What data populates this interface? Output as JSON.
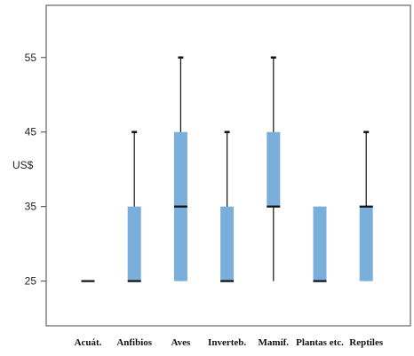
{
  "chart_data": {
    "type": "boxplot",
    "title": "",
    "xlabel": "",
    "ylabel": "US$",
    "ylim": [
      19,
      62
    ],
    "yticks": [
      25,
      35,
      45,
      55
    ],
    "grid": false,
    "categories": [
      "Acuát.",
      "Anfibios",
      "Aves",
      "Inverteb.",
      "Mamíf.",
      "Plantas etc.",
      "Reptiles"
    ],
    "boxes": [
      {
        "min": 25,
        "q1": 25,
        "median": 25,
        "q3": 25,
        "max": 25
      },
      {
        "min": 25,
        "q1": 25,
        "median": 25,
        "q3": 35,
        "max": 45
      },
      {
        "min": 25,
        "q1": 25,
        "median": 35,
        "q3": 45,
        "max": 55
      },
      {
        "min": 25,
        "q1": 25,
        "median": 25,
        "q3": 35,
        "max": 45
      },
      {
        "min": 25,
        "q1": 35,
        "median": 35,
        "q3": 45,
        "max": 55
      },
      {
        "min": 25,
        "q1": 25,
        "median": 25,
        "q3": 35,
        "max": 35
      },
      {
        "min": 25,
        "q1": 25,
        "median": 35,
        "q3": 35,
        "max": 45
      }
    ],
    "colors": {
      "box": "#7aaedb",
      "line": "#111111",
      "frame": "#444444"
    }
  }
}
